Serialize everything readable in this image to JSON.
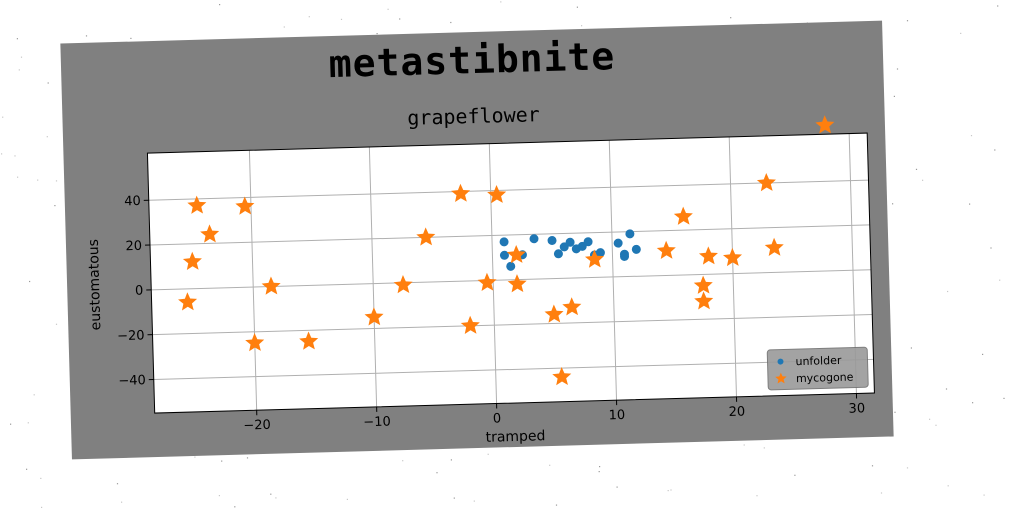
{
  "figure": {
    "title": "metastibnite",
    "subtitle": "grapeflower"
  },
  "chart_data": {
    "type": "scatter",
    "title": "grapeflower",
    "xlabel": "tramped",
    "ylabel": "eustomatous",
    "xlim": [
      -28.5,
      31.5
    ],
    "ylim": [
      -55,
      61
    ],
    "xticks": [
      -20,
      -10,
      0,
      10,
      20,
      30
    ],
    "yticks": [
      -40,
      -20,
      0,
      20,
      40
    ],
    "xtick_labels": [
      "−20",
      "−10",
      "0",
      "10",
      "20",
      "30"
    ],
    "ytick_labels": [
      "−40",
      "−20",
      "0",
      "20",
      "40"
    ],
    "grid": true,
    "legend_position": "lower-right",
    "series": [
      {
        "name": "unfolder",
        "marker": "circle",
        "color": "#1f77b4",
        "points": [
          [
            1,
            17
          ],
          [
            1,
            11
          ],
          [
            1.5,
            6
          ],
          [
            2.5,
            11
          ],
          [
            3.5,
            18
          ],
          [
            5,
            17
          ],
          [
            5.5,
            11
          ],
          [
            6,
            14
          ],
          [
            6.5,
            16
          ],
          [
            7,
            13
          ],
          [
            7.5,
            14
          ],
          [
            8,
            16
          ],
          [
            8.5,
            10
          ],
          [
            9,
            11
          ],
          [
            10.5,
            15
          ],
          [
            11,
            10
          ],
          [
            11,
            9
          ],
          [
            11.5,
            19
          ],
          [
            12,
            12
          ]
        ]
      },
      {
        "name": "mycogone",
        "marker": "star",
        "color": "#ff7f0e",
        "points": [
          [
            -25.5,
            -6
          ],
          [
            -24.5,
            37
          ],
          [
            -25,
            12
          ],
          [
            -23.5,
            24
          ],
          [
            -20.5,
            36
          ],
          [
            -20,
            -25
          ],
          [
            -18.5,
            0
          ],
          [
            -15.5,
            -25
          ],
          [
            -10,
            -15
          ],
          [
            -7.5,
            -1
          ],
          [
            -5.5,
            20
          ],
          [
            -2.5,
            39
          ],
          [
            -2,
            -20
          ],
          [
            -0.5,
            -1
          ],
          [
            0.5,
            38
          ],
          [
            2,
            11
          ],
          [
            2,
            -2
          ],
          [
            5,
            -16
          ],
          [
            5.5,
            -44
          ],
          [
            6.5,
            -13
          ],
          [
            8.5,
            8
          ],
          [
            14.5,
            11
          ],
          [
            16,
            26
          ],
          [
            17.5,
            -5
          ],
          [
            17.5,
            -12
          ],
          [
            18,
            8
          ],
          [
            20,
            7
          ],
          [
            23,
            40
          ],
          [
            23.5,
            11
          ],
          [
            28,
            65
          ]
        ]
      }
    ]
  }
}
